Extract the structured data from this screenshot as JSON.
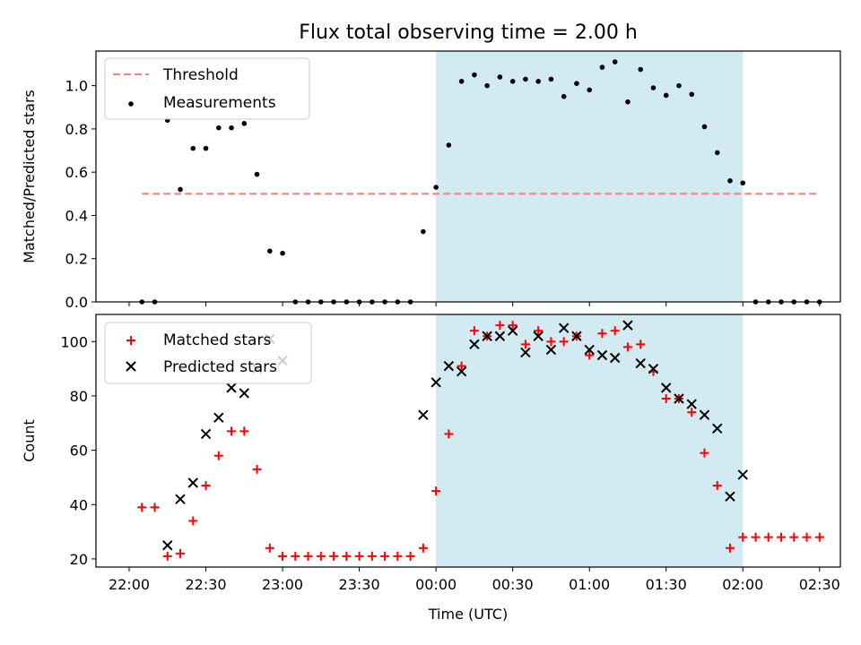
{
  "chart_data": {
    "title": "Flux total observing time = 2.00 h",
    "xlabel": "Time (UTC)",
    "x_ticks": [
      "22:00",
      "22:30",
      "23:00",
      "23:30",
      "00:00",
      "00:30",
      "01:00",
      "01:30",
      "02:00",
      "02:30"
    ],
    "x_tick_minutes": [
      0,
      30,
      60,
      90,
      120,
      150,
      180,
      210,
      240,
      270
    ],
    "shaded_span_minutes": [
      120,
      240
    ],
    "colors": {
      "shade": "#add8e6",
      "threshold": "#ff7f7f",
      "measurements": "#000000",
      "matched": "#ff0000",
      "predicted": "#000000"
    },
    "panels": [
      {
        "type": "scatter",
        "ylabel": "Matched/Predicted stars",
        "ylim": [
          0,
          1.16
        ],
        "y_ticks": [
          0.0,
          0.2,
          0.4,
          0.6,
          0.8,
          1.0
        ],
        "y_tick_labels": [
          "0.0",
          "0.2",
          "0.4",
          "0.6",
          "0.8",
          "1.0"
        ],
        "legend": [
          "Threshold",
          "Measurements"
        ],
        "legend_position": "top-left",
        "threshold": {
          "name": "Threshold",
          "y": 0.5,
          "x_range": [
            5,
            270
          ]
        },
        "series": [
          {
            "name": "Measurements",
            "points": [
              [
                5,
                0.0
              ],
              [
                10,
                0.0
              ],
              [
                15,
                0.84
              ],
              [
                20,
                0.52
              ],
              [
                25,
                0.71
              ],
              [
                30,
                0.71
              ],
              [
                35,
                0.805
              ],
              [
                40,
                0.805
              ],
              [
                45,
                0.825
              ],
              [
                50,
                0.59
              ],
              [
                55,
                0.235
              ],
              [
                60,
                0.225
              ],
              [
                65,
                0.0
              ],
              [
                70,
                0.0
              ],
              [
                75,
                0.0
              ],
              [
                80,
                0.0
              ],
              [
                85,
                0.0
              ],
              [
                90,
                0.0
              ],
              [
                95,
                0.0
              ],
              [
                100,
                0.0
              ],
              [
                105,
                0.0
              ],
              [
                110,
                0.0
              ],
              [
                115,
                0.325
              ],
              [
                120,
                0.53
              ],
              [
                125,
                0.725
              ],
              [
                130,
                1.02
              ],
              [
                135,
                1.05
              ],
              [
                140,
                1.0
              ],
              [
                145,
                1.04
              ],
              [
                150,
                1.02
              ],
              [
                155,
                1.03
              ],
              [
                160,
                1.02
              ],
              [
                165,
                1.03
              ],
              [
                170,
                0.95
              ],
              [
                175,
                1.01
              ],
              [
                180,
                0.98
              ],
              [
                185,
                1.085
              ],
              [
                190,
                1.11
              ],
              [
                195,
                0.925
              ],
              [
                200,
                1.075
              ],
              [
                205,
                0.99
              ],
              [
                210,
                0.955
              ],
              [
                215,
                1.0
              ],
              [
                220,
                0.96
              ],
              [
                225,
                0.81
              ],
              [
                230,
                0.69
              ],
              [
                235,
                0.56
              ],
              [
                240,
                0.55
              ],
              [
                245,
                0.0
              ],
              [
                250,
                0.0
              ],
              [
                255,
                0.0
              ],
              [
                260,
                0.0
              ],
              [
                265,
                0.0
              ],
              [
                270,
                0.0
              ]
            ]
          }
        ]
      },
      {
        "type": "scatter",
        "ylabel": "Count",
        "ylim": [
          17,
          110
        ],
        "y_ticks": [
          20,
          40,
          60,
          80,
          100
        ],
        "y_tick_labels": [
          "20",
          "40",
          "60",
          "80",
          "100"
        ],
        "legend": [
          "Matched stars",
          "Predicted stars"
        ],
        "legend_position": "top-left",
        "series": [
          {
            "name": "Matched stars",
            "marker": "plus",
            "points": [
              [
                5,
                39
              ],
              [
                10,
                39
              ],
              [
                15,
                21
              ],
              [
                20,
                22
              ],
              [
                25,
                34
              ],
              [
                30,
                47
              ],
              [
                35,
                58
              ],
              [
                40,
                67
              ],
              [
                45,
                67
              ],
              [
                50,
                53
              ],
              [
                55,
                24
              ],
              [
                60,
                21
              ],
              [
                65,
                21
              ],
              [
                70,
                21
              ],
              [
                75,
                21
              ],
              [
                80,
                21
              ],
              [
                85,
                21
              ],
              [
                90,
                21
              ],
              [
                95,
                21
              ],
              [
                100,
                21
              ],
              [
                105,
                21
              ],
              [
                110,
                21
              ],
              [
                115,
                24
              ],
              [
                120,
                45
              ],
              [
                125,
                66
              ],
              [
                130,
                91
              ],
              [
                135,
                104
              ],
              [
                140,
                102
              ],
              [
                145,
                106
              ],
              [
                150,
                106
              ],
              [
                155,
                99
              ],
              [
                160,
                104
              ],
              [
                165,
                100
              ],
              [
                170,
                100
              ],
              [
                175,
                102
              ],
              [
                180,
                95
              ],
              [
                185,
                103
              ],
              [
                190,
                104
              ],
              [
                195,
                98
              ],
              [
                200,
                99
              ],
              [
                205,
                89
              ],
              [
                210,
                79
              ],
              [
                215,
                79
              ],
              [
                220,
                74
              ],
              [
                225,
                59
              ],
              [
                230,
                47
              ],
              [
                235,
                24
              ],
              [
                240,
                28
              ],
              [
                245,
                28
              ],
              [
                250,
                28
              ],
              [
                255,
                28
              ],
              [
                260,
                28
              ],
              [
                265,
                28
              ],
              [
                270,
                28
              ]
            ]
          },
          {
            "name": "Predicted stars",
            "marker": "x",
            "points": [
              [
                15,
                25
              ],
              [
                20,
                42
              ],
              [
                25,
                48
              ],
              [
                30,
                66
              ],
              [
                35,
                72
              ],
              [
                40,
                83
              ],
              [
                45,
                81
              ],
              [
                50,
                90
              ],
              [
                55,
                101
              ],
              [
                60,
                93
              ],
              [
                115,
                73
              ],
              [
                120,
                85
              ],
              [
                125,
                91
              ],
              [
                130,
                89
              ],
              [
                135,
                99
              ],
              [
                140,
                102
              ],
              [
                145,
                102
              ],
              [
                150,
                104
              ],
              [
                155,
                96
              ],
              [
                160,
                102
              ],
              [
                165,
                97
              ],
              [
                170,
                105
              ],
              [
                175,
                102
              ],
              [
                180,
                97
              ],
              [
                185,
                95
              ],
              [
                190,
                94
              ],
              [
                195,
                106
              ],
              [
                200,
                92
              ],
              [
                205,
                90
              ],
              [
                210,
                83
              ],
              [
                215,
                79
              ],
              [
                220,
                77
              ],
              [
                225,
                73
              ],
              [
                230,
                68
              ],
              [
                235,
                43
              ],
              [
                240,
                51
              ]
            ]
          }
        ]
      }
    ]
  }
}
